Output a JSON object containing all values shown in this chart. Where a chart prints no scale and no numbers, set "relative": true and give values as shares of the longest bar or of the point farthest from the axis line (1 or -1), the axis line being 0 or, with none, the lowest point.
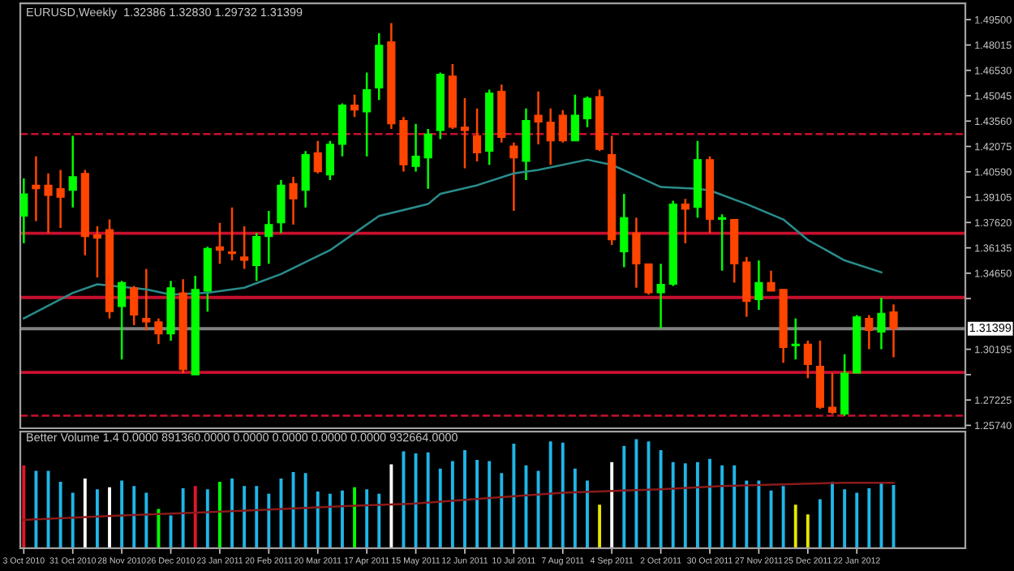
{
  "chart_data": [
    {
      "type": "candlestick",
      "title": "EURUSD,Weekly  1.32386 1.32830 1.29732 1.31399",
      "tick_labels": "y",
      "x": [
        "2010-10-03",
        "2010-10-10",
        "2010-10-17",
        "2010-10-24",
        "2010-10-31",
        "2010-11-07",
        "2010-11-14",
        "2010-11-21",
        "2010-11-28",
        "2010-12-05",
        "2010-12-12",
        "2010-12-19",
        "2010-12-26",
        "2011-01-02",
        "2011-01-09",
        "2011-01-16",
        "2011-01-23",
        "2011-01-30",
        "2011-02-06",
        "2011-02-13",
        "2011-02-20",
        "2011-02-27",
        "2011-03-06",
        "2011-03-13",
        "2011-03-20",
        "2011-03-27",
        "2011-04-03",
        "2011-04-10",
        "2011-04-17",
        "2011-04-24",
        "2011-05-01",
        "2011-05-08",
        "2011-05-15",
        "2011-05-22",
        "2011-05-29",
        "2011-06-05",
        "2011-06-12",
        "2011-06-19",
        "2011-06-26",
        "2011-07-03",
        "2011-07-10",
        "2011-07-17",
        "2011-07-24",
        "2011-07-31",
        "2011-08-07",
        "2011-08-14",
        "2011-08-21",
        "2011-08-28",
        "2011-09-04",
        "2011-09-11",
        "2011-09-18",
        "2011-09-25",
        "2011-10-02",
        "2011-10-09",
        "2011-10-16",
        "2011-10-23",
        "2011-10-30",
        "2011-11-06",
        "2011-11-13",
        "2011-11-20",
        "2011-11-27",
        "2011-12-04",
        "2011-12-11",
        "2011-12-18",
        "2011-12-25",
        "2012-01-01",
        "2012-01-08",
        "2012-01-15",
        "2012-01-22",
        "2012-01-29",
        "2012-02-05",
        "2012-02-12"
      ],
      "ohlc": [
        [
          1.38,
          1.402,
          1.364,
          1.393
        ],
        [
          1.398,
          1.415,
          1.377,
          1.396
        ],
        [
          1.398,
          1.405,
          1.37,
          1.392
        ],
        [
          1.396,
          1.407,
          1.373,
          1.391
        ],
        [
          1.395,
          1.427,
          1.385,
          1.403
        ],
        [
          1.405,
          1.407,
          1.357,
          1.368
        ],
        [
          1.369,
          1.374,
          1.344,
          1.367
        ],
        [
          1.372,
          1.378,
          1.32,
          1.324
        ],
        [
          1.327,
          1.342,
          1.296,
          1.341
        ],
        [
          1.338,
          1.339,
          1.316,
          1.322
        ],
        [
          1.32,
          1.349,
          1.313,
          1.318
        ],
        [
          1.318,
          1.32,
          1.305,
          1.311
        ],
        [
          1.311,
          1.342,
          1.307,
          1.338
        ],
        [
          1.335,
          1.343,
          1.288,
          1.29
        ],
        [
          1.287,
          1.345,
          1.287,
          1.337
        ],
        [
          1.336,
          1.362,
          1.324,
          1.361
        ],
        [
          1.362,
          1.376,
          1.352,
          1.36
        ],
        [
          1.359,
          1.385,
          1.354,
          1.358
        ],
        [
          1.356,
          1.374,
          1.349,
          1.354
        ],
        [
          1.351,
          1.37,
          1.342,
          1.368
        ],
        [
          1.368,
          1.383,
          1.352,
          1.375
        ],
        [
          1.376,
          1.401,
          1.37,
          1.398
        ],
        [
          1.399,
          1.403,
          1.375,
          1.39
        ],
        [
          1.395,
          1.418,
          1.385,
          1.416
        ],
        [
          1.417,
          1.424,
          1.405,
          1.406
        ],
        [
          1.404,
          1.424,
          1.401,
          1.422
        ],
        [
          1.422,
          1.446,
          1.415,
          1.445
        ],
        [
          1.445,
          1.451,
          1.438,
          1.442
        ],
        [
          1.441,
          1.464,
          1.415,
          1.454
        ],
        [
          1.455,
          1.487,
          1.448,
          1.48
        ],
        [
          1.482,
          1.493,
          1.431,
          1.434
        ],
        [
          1.436,
          1.438,
          1.406,
          1.41
        ],
        [
          1.409,
          1.434,
          1.406,
          1.415
        ],
        [
          1.414,
          1.431,
          1.396,
          1.428
        ],
        [
          1.43,
          1.464,
          1.425,
          1.463
        ],
        [
          1.462,
          1.469,
          1.431,
          1.432
        ],
        [
          1.432,
          1.449,
          1.408,
          1.43
        ],
        [
          1.427,
          1.443,
          1.412,
          1.417
        ],
        [
          1.418,
          1.454,
          1.41,
          1.452
        ],
        [
          1.453,
          1.457,
          1.423,
          1.426
        ],
        [
          1.421,
          1.423,
          1.383,
          1.414
        ],
        [
          1.412,
          1.443,
          1.401,
          1.436
        ],
        [
          1.439,
          1.453,
          1.422,
          1.435
        ],
        [
          1.435,
          1.443,
          1.41,
          1.424
        ],
        [
          1.439,
          1.442,
          1.423,
          1.424
        ],
        [
          1.424,
          1.451,
          1.424,
          1.439
        ],
        [
          1.437,
          1.45,
          1.432,
          1.449
        ],
        [
          1.45,
          1.454,
          1.418,
          1.419
        ],
        [
          1.416,
          1.427,
          1.363,
          1.366
        ],
        [
          1.359,
          1.393,
          1.35,
          1.379
        ],
        [
          1.37,
          1.379,
          1.338,
          1.352
        ],
        [
          1.352,
          1.352,
          1.334,
          1.335
        ],
        [
          1.335,
          1.352,
          1.314,
          1.34
        ],
        [
          1.34,
          1.389,
          1.339,
          1.387
        ],
        [
          1.387,
          1.39,
          1.364,
          1.384
        ],
        [
          1.385,
          1.424,
          1.379,
          1.413
        ],
        [
          1.413,
          1.415,
          1.37,
          1.378
        ],
        [
          1.378,
          1.381,
          1.348,
          1.379
        ],
        [
          1.378,
          1.378,
          1.341,
          1.352
        ],
        [
          1.353,
          1.356,
          1.321,
          1.33
        ],
        [
          1.331,
          1.354,
          1.325,
          1.341
        ],
        [
          1.341,
          1.348,
          1.336,
          1.336
        ],
        [
          1.337,
          1.337,
          1.294,
          1.303
        ],
        [
          1.304,
          1.32,
          1.296,
          1.305
        ],
        [
          1.305,
          1.307,
          1.285,
          1.293
        ],
        [
          1.292,
          1.307,
          1.267,
          1.268
        ],
        [
          1.268,
          1.288,
          1.264,
          1.265
        ],
        [
          1.264,
          1.299,
          1.263,
          1.288
        ],
        [
          1.288,
          1.322,
          1.288,
          1.321
        ],
        [
          1.32,
          1.322,
          1.302,
          1.313
        ],
        [
          1.312,
          1.332,
          1.302,
          1.323
        ],
        [
          1.32386,
          1.3283,
          1.29732,
          1.31399
        ]
      ],
      "colors": [
        "#00ff00",
        "#ff4500",
        "#ff4500",
        "#ff4500",
        "#00ff00",
        "#ff4500",
        "#ff4500",
        "#ff4500",
        "#00ff00",
        "#ff4500",
        "#ff4500",
        "#ff4500",
        "#00ff00",
        "#ff4500",
        "#00ff00",
        "#00ff00",
        "#ff4500",
        "#ff4500",
        "#ff4500",
        "#00ff00",
        "#00ff00",
        "#00ff00",
        "#ff4500",
        "#00ff00",
        "#ff4500",
        "#00ff00",
        "#00ff00",
        "#ff4500",
        "#00ff00",
        "#00ff00",
        "#ff4500",
        "#ff4500",
        "#00ff00",
        "#00ff00",
        "#00ff00",
        "#ff4500",
        "#ff4500",
        "#ff4500",
        "#00ff00",
        "#ff4500",
        "#ff4500",
        "#00ff00",
        "#ff4500",
        "#ff4500",
        "#ff4500",
        "#00ff00",
        "#00ff00",
        "#ff4500",
        "#ff4500",
        "#00ff00",
        "#ff4500",
        "#ff4500",
        "#00ff00",
        "#00ff00",
        "#ff4500",
        "#00ff00",
        "#ff4500",
        "#00ff00",
        "#ff4500",
        "#ff4500",
        "#00ff00",
        "#ff4500",
        "#ff4500",
        "#00ff00",
        "#ff4500",
        "#ff4500",
        "#ff4500",
        "#00ff00",
        "#00ff00",
        "#ff4500",
        "#00ff00",
        "#ff4500"
      ],
      "series": [
        {
          "type": "line",
          "color": "#2a8c8c",
          "x": [
            "2010-10-03",
            "2010-10-31",
            "2010-11-14",
            "2010-12-12",
            "2010-12-26",
            "2011-01-16",
            "2011-02-06",
            "2011-02-27",
            "2011-03-27",
            "2011-04-10",
            "2011-04-24",
            "2011-05-22",
            "2011-05-29",
            "2011-06-19",
            "2011-07-10",
            "2011-07-24",
            "2011-08-21",
            "2011-09-04",
            "2011-10-02",
            "2011-10-23",
            "2011-10-30",
            "2011-11-20",
            "2011-12-11",
            "2011-12-25",
            "2012-01-15",
            "2012-02-05"
          ],
          "values": [
            1.32,
            1.335,
            1.34,
            1.337,
            1.334,
            1.335,
            1.338,
            1.346,
            1.36,
            1.37,
            1.38,
            1.387,
            1.393,
            1.398,
            1.405,
            1.407,
            1.413,
            1.41,
            1.397,
            1.396,
            1.395,
            1.387,
            1.378,
            1.366,
            1.354,
            1.347
          ]
        }
      ],
      "xlim": [
        "2010-10-01",
        "2012-03-24"
      ],
      "ylim": [
        1.2557,
        1.5045
      ],
      "yticks": [
        {
          "value": 1.2574,
          "label": "1.25740"
        },
        {
          "value": 1.27225,
          "label": "1.27225"
        },
        {
          "value": 1.2871,
          "label": null
        },
        {
          "value": 1.30195,
          "label": "1.30195"
        },
        {
          "value": 1.33165,
          "label": null
        },
        {
          "value": 1.3465,
          "label": "1.34650"
        },
        {
          "value": 1.36135,
          "label": "1.36135"
        },
        {
          "value": 1.3762,
          "label": "1.37620"
        },
        {
          "value": 1.39105,
          "label": "1.39105"
        },
        {
          "value": 1.4059,
          "label": "1.40590"
        },
        {
          "value": 1.42075,
          "label": "1.42075"
        },
        {
          "value": 1.4356,
          "label": "1.43560"
        },
        {
          "value": 1.45045,
          "label": "1.45045"
        },
        {
          "value": 1.4653,
          "label": "1.46530"
        },
        {
          "value": 1.48015,
          "label": "1.48015"
        },
        {
          "value": 1.495,
          "label": "1.49500"
        }
      ],
      "ref_lines": [
        {
          "axis": "y",
          "value": 1.428,
          "color": "#c8102e",
          "line_style": "dashed"
        },
        {
          "axis": "y",
          "value": 1.3699,
          "color": "#c8102e",
          "line_style": "solid"
        },
        {
          "axis": "y",
          "value": 1.3323,
          "color": "#c8102e",
          "line_style": "solid"
        },
        {
          "axis": "y",
          "value": 1.2884,
          "color": "#c8102e",
          "line_style": "solid"
        },
        {
          "axis": "y",
          "value": 1.2631,
          "color": "#c8102e",
          "line_style": "dashed"
        },
        {
          "axis": "y",
          "value": 1.31399,
          "color": "#808080",
          "line_style": "solid",
          "label": "1.31399"
        }
      ]
    },
    {
      "type": "bar",
      "title": "Better Volume 1.4 0.0000 891360.0000 0.0000 0.0000 0.0000 0.0000 932664.0000",
      "relative": true,
      "tick_labels": "x",
      "x": [
        "2010-10-03",
        "2010-10-10",
        "2010-10-17",
        "2010-10-24",
        "2010-10-31",
        "2010-11-07",
        "2010-11-14",
        "2010-11-21",
        "2010-11-28",
        "2010-12-05",
        "2010-12-12",
        "2010-12-19",
        "2010-12-26",
        "2011-01-02",
        "2011-01-09",
        "2011-01-16",
        "2011-01-23",
        "2011-01-30",
        "2011-02-06",
        "2011-02-13",
        "2011-02-20",
        "2011-02-27",
        "2011-03-06",
        "2011-03-13",
        "2011-03-20",
        "2011-03-27",
        "2011-04-03",
        "2011-04-10",
        "2011-04-17",
        "2011-04-24",
        "2011-05-01",
        "2011-05-08",
        "2011-05-15",
        "2011-05-22",
        "2011-05-29",
        "2011-06-05",
        "2011-06-12",
        "2011-06-19",
        "2011-06-26",
        "2011-07-03",
        "2011-07-10",
        "2011-07-17",
        "2011-07-24",
        "2011-07-31",
        "2011-08-07",
        "2011-08-14",
        "2011-08-21",
        "2011-08-28",
        "2011-09-04",
        "2011-09-11",
        "2011-09-18",
        "2011-09-25",
        "2011-10-02",
        "2011-10-09",
        "2011-10-16",
        "2011-10-23",
        "2011-10-30",
        "2011-11-06",
        "2011-11-13",
        "2011-11-20",
        "2011-11-27",
        "2011-12-04",
        "2011-12-11",
        "2011-12-18",
        "2011-12-25",
        "2012-01-01",
        "2012-01-08",
        "2012-01-15",
        "2012-01-22",
        "2012-01-29",
        "2012-02-05",
        "2012-02-12"
      ],
      "series": [
        {
          "type": "bar",
          "values": [
            0.76,
            0.71,
            0.71,
            0.61,
            0.51,
            0.64,
            0.54,
            0.56,
            0.62,
            0.57,
            0.51,
            0.36,
            0.3,
            0.55,
            0.57,
            0.54,
            0.61,
            0.64,
            0.57,
            0.57,
            0.5,
            0.64,
            0.7,
            0.69,
            0.52,
            0.5,
            0.53,
            0.56,
            0.54,
            0.5,
            0.77,
            0.89,
            0.87,
            0.88,
            0.73,
            0.8,
            0.9,
            0.81,
            0.8,
            0.69,
            0.96,
            0.76,
            0.71,
            0.98,
            0.97,
            0.73,
            0.62,
            0.4,
            0.79,
            0.94,
            1,
            0.98,
            0.9,
            0.79,
            0.78,
            0.79,
            0.82,
            0.76,
            0.76,
            0.62,
            0.62,
            0.53,
            0.57,
            0.4,
            0.31,
            0.45,
            0.61,
            0.54,
            0.51,
            0.55,
            0.6,
            0.58
          ],
          "colors": [
            "#e0162b",
            "#1fb6e8",
            "#1fb6e8",
            "#1fb6e8",
            "#1fb6e8",
            "#ffffff",
            "#1fb6e8",
            "#ffffff",
            "#1fb6e8",
            "#1fb6e8",
            "#1fb6e8",
            "#00ff00",
            "#1fb6e8",
            "#1fb6e8",
            "#e0162b",
            "#1fb6e8",
            "#00ff00",
            "#1fb6e8",
            "#1fb6e8",
            "#1fb6e8",
            "#1fb6e8",
            "#1fb6e8",
            "#1fb6e8",
            "#1fb6e8",
            "#1fb6e8",
            "#1fb6e8",
            "#1fb6e8",
            "#00ff00",
            "#1fb6e8",
            "#1fb6e8",
            "#ffffff",
            "#1fb6e8",
            "#1fb6e8",
            "#1fb6e8",
            "#1fb6e8",
            "#1fb6e8",
            "#1fb6e8",
            "#1fb6e8",
            "#1fb6e8",
            "#1fb6e8",
            "#1fb6e8",
            "#1fb6e8",
            "#1fb6e8",
            "#1fb6e8",
            "#1fb6e8",
            "#1fb6e8",
            "#1fb6e8",
            "#e6e600",
            "#ffffff",
            "#1fb6e8",
            "#1fb6e8",
            "#1fb6e8",
            "#1fb6e8",
            "#1fb6e8",
            "#1fb6e8",
            "#1fb6e8",
            "#1fb6e8",
            "#1fb6e8",
            "#1fb6e8",
            "#1fb6e8",
            "#1fb6e8",
            "#1fb6e8",
            "#1fb6e8",
            "#e6e600",
            "#e6e600",
            "#1fb6e8",
            "#1fb6e8",
            "#1fb6e8",
            "#1fb6e8",
            "#1fb6e8",
            "#1fb6e8",
            "#1fb6e8"
          ]
        },
        {
          "type": "line",
          "color": "#8b1a1a",
          "x": [
            "2010-10-03",
            "2010-11-28",
            "2011-01-30",
            "2011-04-10",
            "2011-05-15",
            "2011-06-26",
            "2011-08-07",
            "2011-10-02",
            "2011-11-06",
            "2011-12-18",
            "2012-01-15",
            "2012-02-12"
          ],
          "values": [
            0.26,
            0.3,
            0.34,
            0.39,
            0.41,
            0.46,
            0.51,
            0.54,
            0.57,
            0.59,
            0.6,
            0.6
          ]
        }
      ],
      "xlim": [
        "2010-10-01",
        "2012-03-24"
      ],
      "xticks": [
        {
          "value": "2010-10-03",
          "label": "3 Oct 2010"
        },
        {
          "value": "2010-10-31",
          "label": "31 Oct 2010"
        },
        {
          "value": "2010-11-28",
          "label": "28 Nov 2010"
        },
        {
          "value": "2010-12-26",
          "label": "26 Dec 2010"
        },
        {
          "value": "2011-01-23",
          "label": "23 Jan 2011"
        },
        {
          "value": "2011-02-20",
          "label": "20 Feb 2011"
        },
        {
          "value": "2011-03-20",
          "label": "20 Mar 2011"
        },
        {
          "value": "2011-04-17",
          "label": "17 Apr 2011"
        },
        {
          "value": "2011-05-15",
          "label": "15 May 2011"
        },
        {
          "value": "2011-06-12",
          "label": "12 Jun 2011"
        },
        {
          "value": "2011-07-10",
          "label": "10 Jul 2011"
        },
        {
          "value": "2011-08-07",
          "label": "7 Aug 2011"
        },
        {
          "value": "2011-09-04",
          "label": "4 Sep 2011"
        },
        {
          "value": "2011-10-02",
          "label": "2 Oct 2011"
        },
        {
          "value": "2011-10-30",
          "label": "30 Oct 2011"
        },
        {
          "value": "2011-11-27",
          "label": "27 Nov 2011"
        },
        {
          "value": "2011-12-25",
          "label": "25 Dec 2011"
        },
        {
          "value": "2012-01-22",
          "label": "22 Jan 2012"
        }
      ]
    }
  ]
}
